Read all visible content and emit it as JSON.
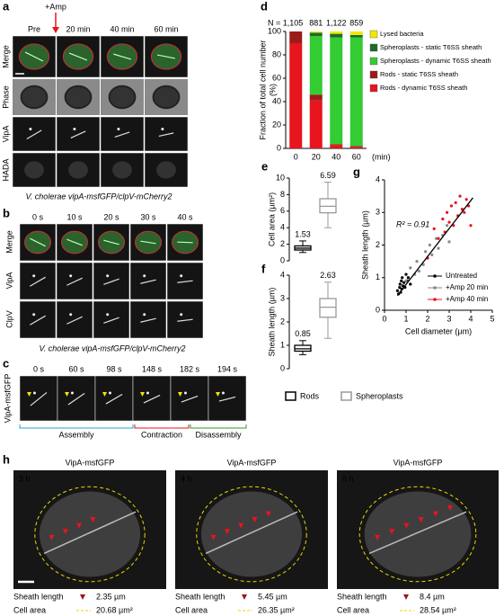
{
  "panels": {
    "a": {
      "label": "a",
      "treatment": "+Amp",
      "columns": [
        "Pre",
        "20 min",
        "40 min",
        "60 min"
      ],
      "rows": [
        "Merge",
        "Phase",
        "VipA",
        "HADA"
      ],
      "caption": "V. cholerae vipA-msfGFP/clpV-mCherry2"
    },
    "b": {
      "label": "b",
      "columns": [
        "0 s",
        "10 s",
        "20 s",
        "30 s",
        "40 s"
      ],
      "rows": [
        "Merge",
        "VipA",
        "ClpV"
      ],
      "caption": "V. cholerae vipA-msfGFP/clpV-mCherry2"
    },
    "c": {
      "label": "c",
      "columns": [
        "0 s",
        "60 s",
        "98 s",
        "148 s",
        "182 s",
        "194 s"
      ],
      "row": "VipA-msfGFP",
      "phases": [
        "Assembly",
        "Contraction",
        "Disassembly"
      ]
    },
    "h": {
      "label": "h",
      "images": [
        {
          "title": "VipA-msfGFP",
          "time": "3 h",
          "sheath_label": "Sheath length",
          "sheath": "2.35 µm",
          "area_label": "Cell area",
          "area": "20.68 µm²"
        },
        {
          "title": "VipA-msfGFP",
          "time": "4 h",
          "sheath_label": "Sheath length",
          "sheath": "5.45 µm",
          "area_label": "Cell area",
          "area": "26.35 µm²"
        },
        {
          "title": "VipA-msfGFP",
          "time": "6 h",
          "sheath_label": "Sheath length",
          "sheath": "8.4 µm",
          "area_label": "Cell area",
          "area": "28.54 µm²"
        }
      ]
    }
  },
  "chart_data": [
    {
      "panel": "d",
      "type": "bar",
      "stacked": true,
      "ylabel": [
        "Fraction of total cell number",
        "(%)"
      ],
      "xlabel": "(min)",
      "categories": [
        "0",
        "20",
        "40",
        "60"
      ],
      "annotations": [
        "N = 1,105",
        "881",
        "1,122",
        "859"
      ],
      "ylim": [
        0,
        100
      ],
      "yticks": [
        0,
        20,
        40,
        60,
        80,
        100
      ],
      "series": [
        {
          "name": "Rods - dynamic T6SS sheath",
          "color": "#e8141e",
          "values": [
            90,
            41,
            3,
            1
          ]
        },
        {
          "name": "Rods - static T6SS sheath",
          "color": "#9b1b1b",
          "values": [
            10,
            5,
            0.5,
            1
          ]
        },
        {
          "name": "Spheroplasts - dynamic T6SS sheath",
          "color": "#33cc33",
          "values": [
            0,
            50,
            91.5,
            93
          ]
        },
        {
          "name": "Spheroplasts - static T6SS sheath",
          "color": "#1d6b2a",
          "values": [
            0,
            3,
            3,
            2
          ]
        },
        {
          "name": "Lysed bacteria",
          "color": "#f5e600",
          "values": [
            0,
            1,
            2,
            3
          ]
        }
      ]
    },
    {
      "panel": "e",
      "type": "box",
      "ylabel": "Cell area (µm²)",
      "ylim": [
        0,
        10
      ],
      "yticks": [
        0,
        2,
        4,
        6,
        8,
        10
      ],
      "series": [
        {
          "name": "Rods",
          "color": "#000000",
          "whislo": 1.0,
          "q1": 1.3,
          "median": 1.53,
          "q3": 1.8,
          "whishi": 2.4
        },
        {
          "name": "Spheroplasts",
          "color": "#999999",
          "whislo": 4.0,
          "q1": 5.8,
          "median": 6.59,
          "q3": 7.5,
          "whishi": 9.5
        }
      ]
    },
    {
      "panel": "f",
      "type": "box",
      "ylabel": "Sheath length (µm)",
      "ylim": [
        0,
        4
      ],
      "yticks": [
        0,
        1,
        2,
        3,
        4
      ],
      "series": [
        {
          "color": "#000000",
          "whislo": 0.6,
          "q1": 0.75,
          "median": 0.85,
          "q3": 1.0,
          "whishi": 1.2
        },
        {
          "color": "#999999",
          "whislo": 1.3,
          "q1": 2.2,
          "median": 2.63,
          "q3": 3.0,
          "whishi": 3.7
        }
      ]
    },
    {
      "panel": "g",
      "type": "scatter",
      "xlabel": "Cell diameter (µm)",
      "ylabel": "Sheath length (µm)",
      "annotation": "R² = 0.91",
      "xlim": [
        0,
        5
      ],
      "xticks": [
        0,
        1,
        2,
        3,
        4,
        5
      ],
      "ylim": [
        0,
        4
      ],
      "yticks": [
        0,
        1,
        2,
        3,
        4
      ],
      "legend": "lower right",
      "trend_line": {
        "color": "#000000",
        "x": [
          0.6,
          4.1
        ],
        "y": [
          0.45,
          3.45
        ]
      },
      "series": [
        {
          "name": "Untreated",
          "color": "#000000",
          "x": [
            0.6,
            0.65,
            0.7,
            0.72,
            0.75,
            0.78,
            0.8,
            0.82,
            0.85,
            0.9,
            0.95,
            1.0,
            1.05,
            1.1,
            1.2
          ],
          "y": [
            0.6,
            0.5,
            0.7,
            0.8,
            0.55,
            0.9,
            0.65,
            1.0,
            0.75,
            0.85,
            0.7,
            1.1,
            0.9,
            1.0,
            0.8
          ]
        },
        {
          "name": "+Amp 20 min",
          "color": "#888888",
          "x": [
            1.0,
            1.2,
            1.4,
            1.5,
            1.6,
            1.8,
            1.9,
            2.0,
            2.1,
            2.2,
            2.4,
            2.5,
            2.7,
            2.9,
            3.0
          ],
          "y": [
            0.9,
            1.3,
            1.1,
            1.5,
            1.2,
            1.4,
            1.8,
            1.6,
            2.0,
            1.7,
            2.2,
            1.9,
            2.3,
            2.6,
            2.1
          ]
        },
        {
          "name": "+Amp 40 min",
          "color": "#e8141e",
          "x": [
            2.0,
            2.3,
            2.5,
            2.7,
            2.8,
            2.9,
            3.0,
            3.1,
            3.2,
            3.3,
            3.4,
            3.5,
            3.6,
            3.7,
            3.8,
            3.9,
            4.0
          ],
          "y": [
            1.6,
            2.5,
            2.2,
            2.8,
            2.4,
            3.0,
            2.7,
            3.2,
            2.6,
            3.3,
            2.9,
            3.5,
            3.1,
            3.0,
            3.4,
            3.2,
            2.6
          ]
        }
      ]
    }
  ]
}
